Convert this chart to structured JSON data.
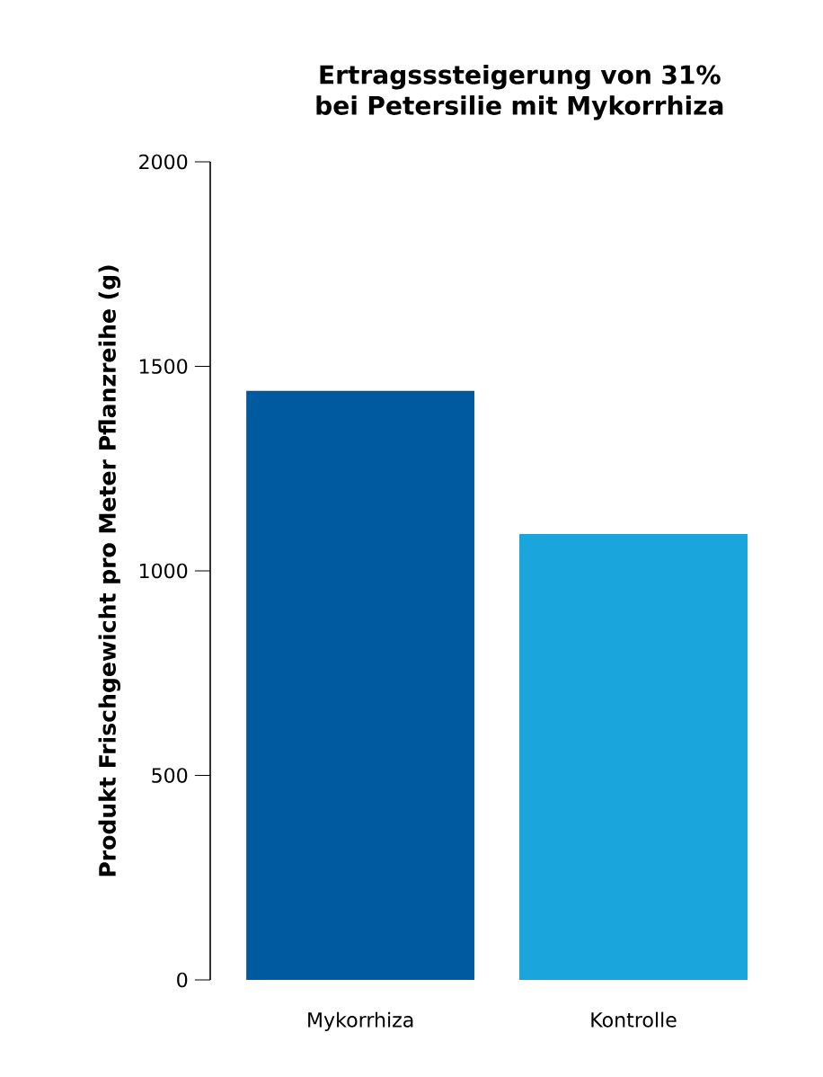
{
  "chart_data": {
    "type": "bar",
    "title": "Ertragsssteigerung von 31%\nbei Petersilie mit Mykorrhiza",
    "ylabel": "Produkt Frischgewicht pro Meter Pflanzreihe (g)",
    "categories": [
      "Mykorrhiza",
      "Kontrolle"
    ],
    "values": [
      1440,
      1090
    ],
    "colors": [
      "#005aa0",
      "#1aa6dc"
    ],
    "ylim": [
      0,
      2000
    ],
    "yticks": [
      0,
      500,
      1000,
      1500,
      2000
    ],
    "grid": false
  }
}
